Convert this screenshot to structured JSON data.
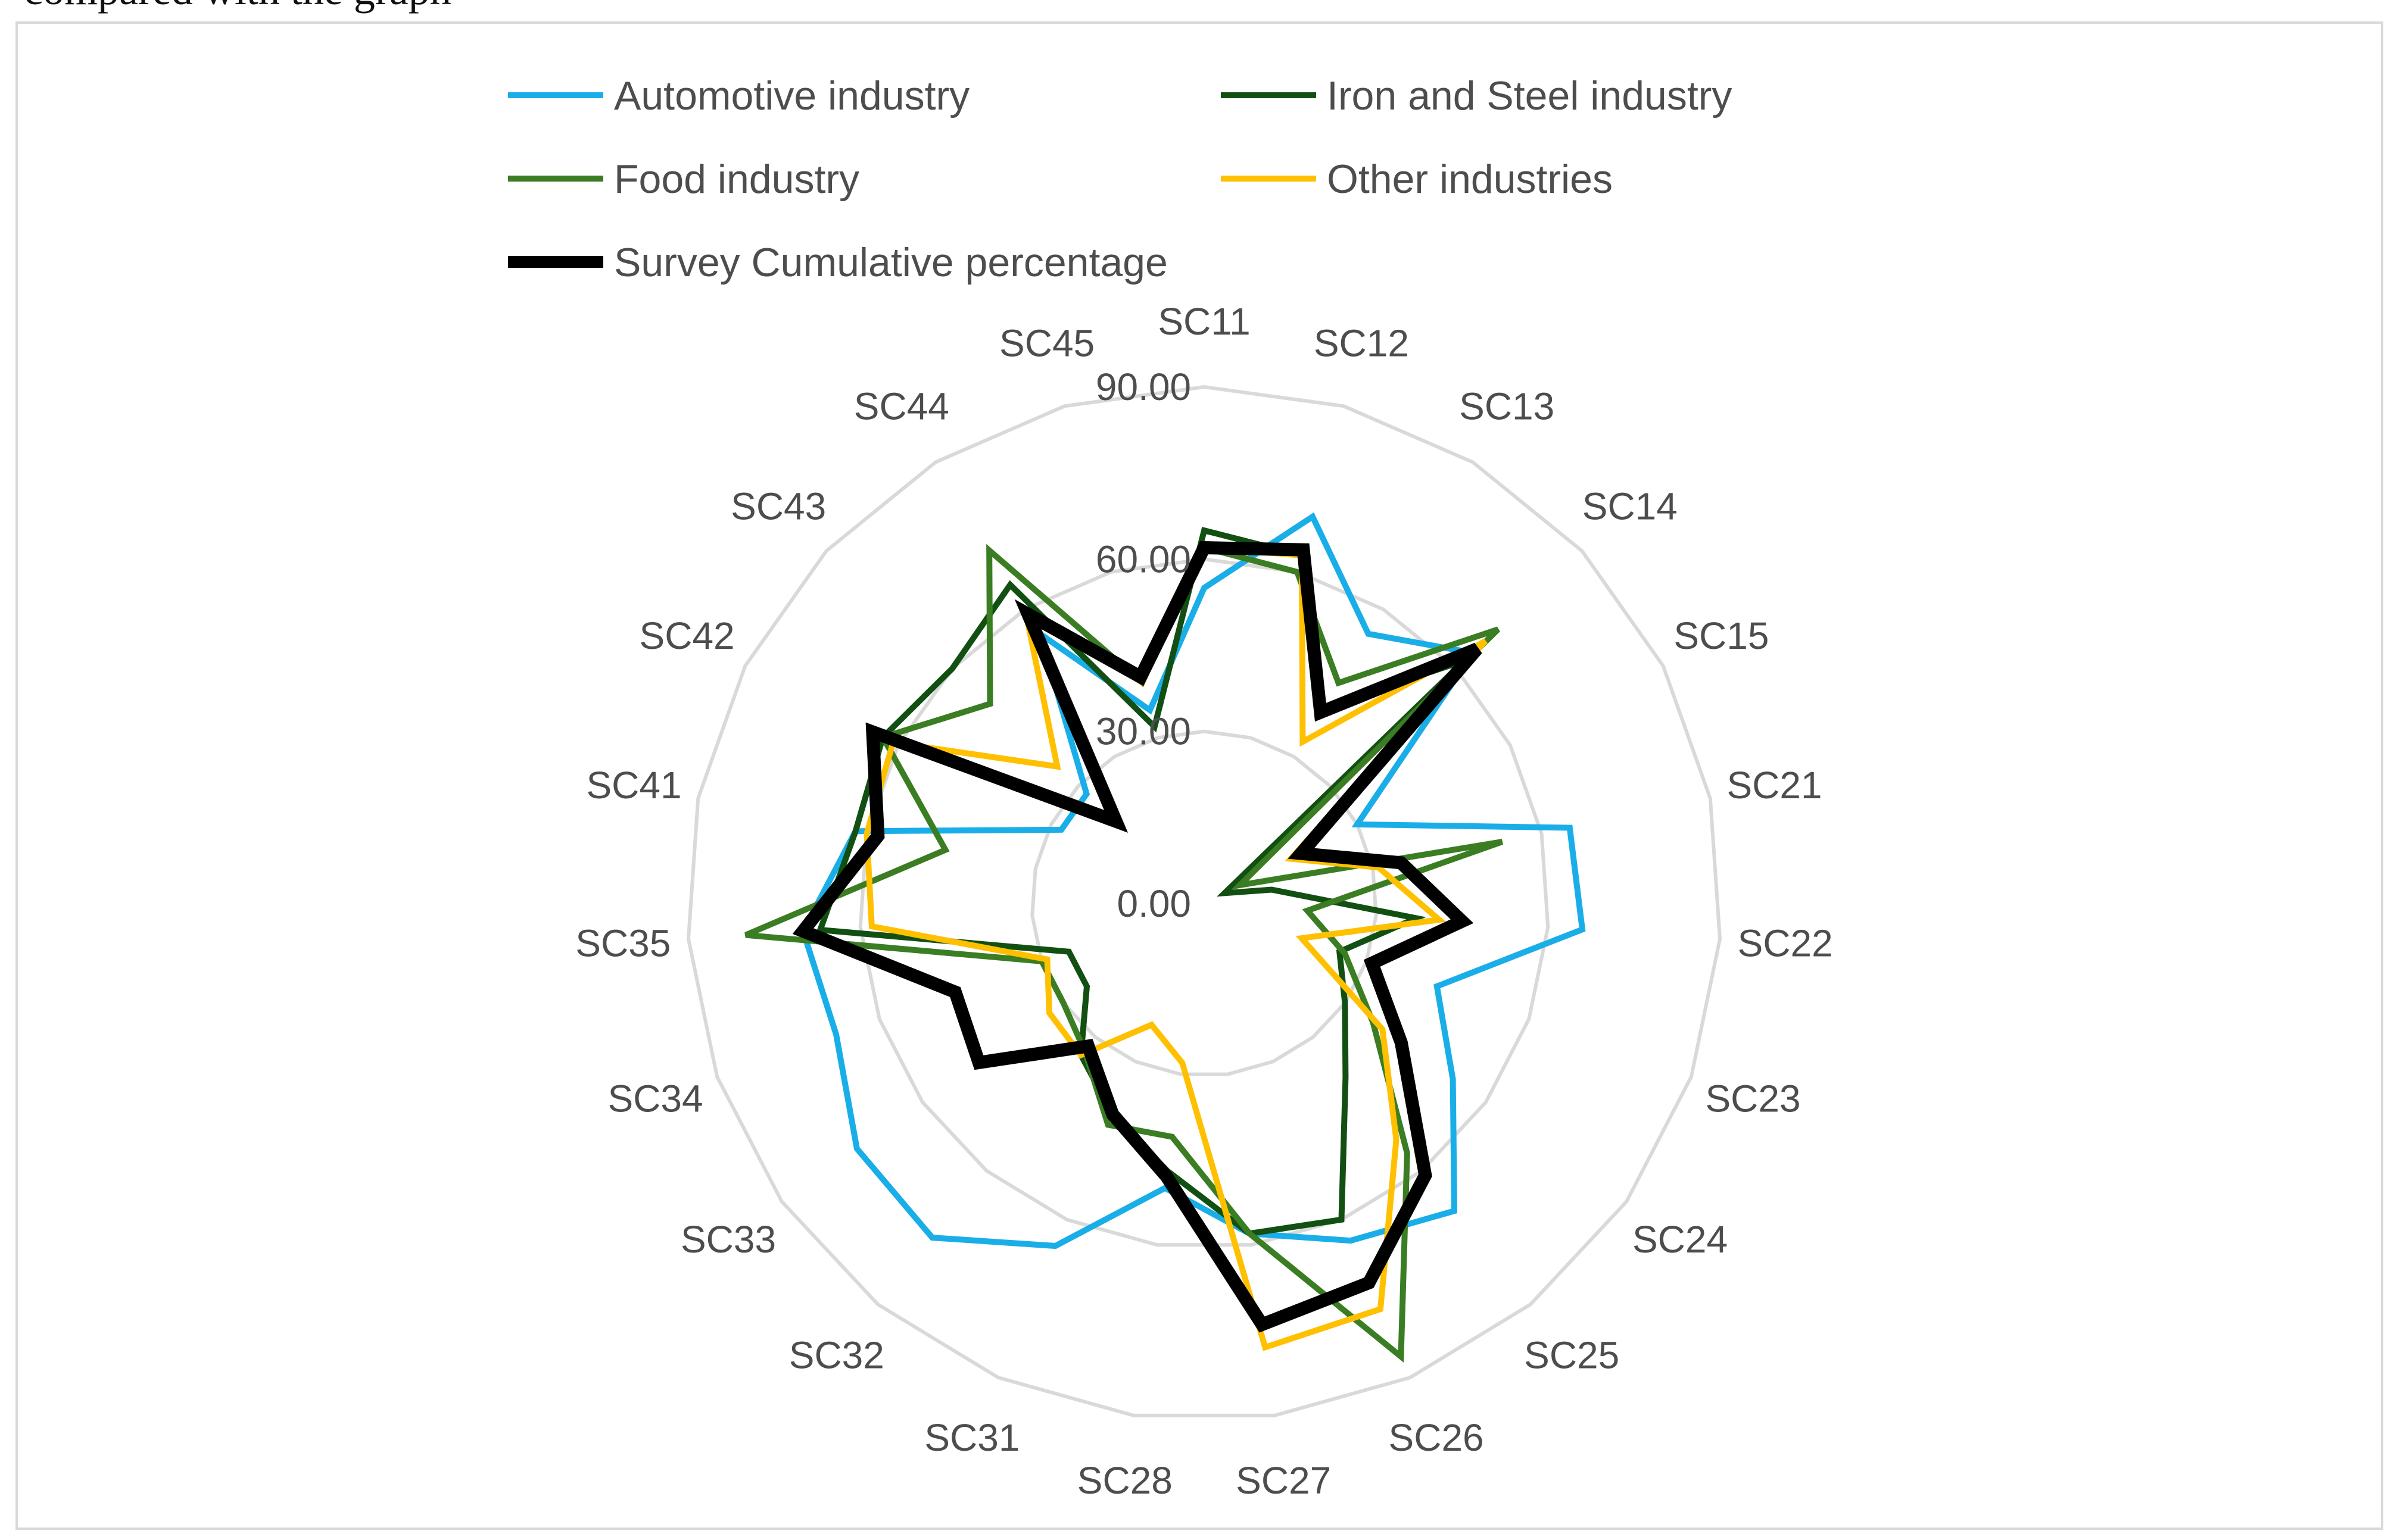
{
  "caption": "compared with the graph",
  "chart_data": {
    "type": "radar",
    "title": "",
    "categories": [
      "SC11",
      "SC12",
      "SC13",
      "SC14",
      "SC15",
      "SC21",
      "SC22",
      "SC23",
      "SC24",
      "SC25",
      "SC26",
      "SC27",
      "SC28",
      "SC31",
      "SC32",
      "SC33",
      "SC34",
      "SC35",
      "SC41",
      "SC42",
      "SC43",
      "SC44",
      "SC45"
    ],
    "radial_range": [
      0,
      90
    ],
    "radial_ticks": [
      0,
      30,
      60,
      90
    ],
    "radial_tick_labels": [
      "0.00",
      "30.00",
      "60.00",
      "90.00"
    ],
    "legend_position": "top",
    "series": [
      {
        "name": "Automotive industry",
        "color": "#1AAEE8",
        "width": 10,
        "values": [
          55,
          70,
          55,
          64,
          30,
          65,
          66,
          43,
          53,
          69,
          64,
          58,
          50,
          65,
          75,
          74,
          68,
          70,
          62,
          28,
          28,
          55,
          35
        ]
      },
      {
        "name": "Iron and Steel industry",
        "color": "#124F12",
        "width": 10,
        "values": [
          65,
          63,
          40,
          62,
          4,
          12,
          37,
          25,
          30,
          39,
          60,
          58,
          47,
          40,
          34,
          25,
          25,
          67,
          62,
          63,
          60,
          65,
          32
        ]
      },
      {
        "name": "Food industry",
        "color": "#3A7D22",
        "width": 10,
        "values": [
          62,
          60,
          45,
          70,
          7,
          53,
          18,
          26,
          36,
          56,
          86,
          58,
          41,
          42,
          33,
          30,
          30,
          80,
          46,
          63,
          51,
          72,
          40
        ]
      },
      {
        "name": "Other industries",
        "color": "#FFC000",
        "width": 10,
        "values": [
          62,
          63,
          33,
          67,
          17,
          31,
          41,
          18,
          38,
          53,
          77,
          78,
          28,
          23,
          34,
          33,
          29,
          58,
          60,
          61,
          35,
          60,
          40
        ]
      },
      {
        "name": "Survey Cumulative percentage",
        "color": "#000000",
        "width": 22,
        "values": [
          62,
          64,
          39,
          65,
          19,
          35,
          45,
          31,
          42,
          61,
          72,
          74,
          48,
          40,
          32,
          48,
          46,
          70,
          58,
          65,
          21,
          59,
          41
        ]
      }
    ]
  }
}
